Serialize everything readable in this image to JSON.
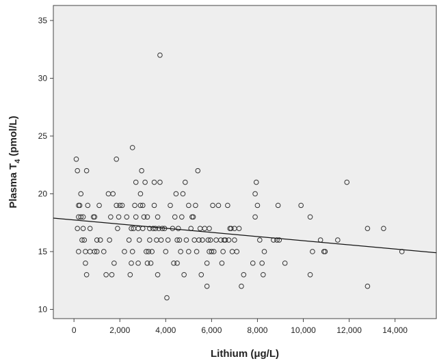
{
  "chart_data": {
    "type": "scatter",
    "title": "",
    "xlabel": "Lithium (μg/L)",
    "ylabel": {
      "main": "Plasma T",
      "sub": "4",
      "tail": " (pmol/L)"
    },
    "xlim": [
      -900,
      15800
    ],
    "ylim": [
      9.2,
      36.3
    ],
    "xticks": [
      0,
      2000,
      4000,
      6000,
      8000,
      10000,
      12000,
      14000
    ],
    "xtick_labels": [
      "0",
      "2,000",
      "4,000",
      "6,000",
      "8,000",
      "10,000",
      "12,000",
      "14,000"
    ],
    "yticks": [
      10,
      15,
      20,
      25,
      30,
      35
    ],
    "ytick_labels": [
      "10",
      "15",
      "20",
      "25",
      "30",
      "35"
    ],
    "grid": false,
    "background": "#eeeeee",
    "marker_color": "#333333",
    "fit_line": {
      "x": [
        -900,
        15800
      ],
      "y": [
        17.9,
        14.9
      ]
    },
    "points": [
      [
        100,
        23
      ],
      [
        150,
        22
      ],
      [
        150,
        17
      ],
      [
        200,
        19
      ],
      [
        250,
        19
      ],
      [
        200,
        18
      ],
      [
        300,
        18
      ],
      [
        200,
        15
      ],
      [
        300,
        20
      ],
      [
        350,
        16
      ],
      [
        400,
        17
      ],
      [
        400,
        18
      ],
      [
        450,
        16
      ],
      [
        500,
        14
      ],
      [
        500,
        15
      ],
      [
        550,
        13
      ],
      [
        550,
        22
      ],
      [
        600,
        19
      ],
      [
        700,
        17
      ],
      [
        700,
        15
      ],
      [
        850,
        18
      ],
      [
        900,
        18
      ],
      [
        900,
        15
      ],
      [
        1000,
        16
      ],
      [
        1000,
        15
      ],
      [
        1100,
        19
      ],
      [
        1150,
        16
      ],
      [
        1300,
        15
      ],
      [
        1400,
        13
      ],
      [
        1500,
        20
      ],
      [
        1550,
        16
      ],
      [
        1600,
        18
      ],
      [
        1650,
        13
      ],
      [
        1700,
        20
      ],
      [
        1750,
        14
      ],
      [
        1850,
        23
      ],
      [
        1850,
        19
      ],
      [
        1900,
        17
      ],
      [
        1950,
        18
      ],
      [
        2000,
        19
      ],
      [
        2100,
        19
      ],
      [
        2200,
        15
      ],
      [
        2300,
        18
      ],
      [
        2400,
        16
      ],
      [
        2450,
        13
      ],
      [
        2500,
        14
      ],
      [
        2500,
        17
      ],
      [
        2550,
        24
      ],
      [
        2550,
        15
      ],
      [
        2600,
        17
      ],
      [
        2650,
        19
      ],
      [
        2700,
        18
      ],
      [
        2700,
        21
      ],
      [
        2800,
        17
      ],
      [
        2800,
        14
      ],
      [
        2850,
        16
      ],
      [
        2900,
        19
      ],
      [
        2900,
        20
      ],
      [
        2950,
        22
      ],
      [
        3000,
        19
      ],
      [
        3000,
        17
      ],
      [
        3050,
        18
      ],
      [
        3100,
        21
      ],
      [
        3150,
        15
      ],
      [
        3200,
        18
      ],
      [
        3200,
        14
      ],
      [
        3250,
        15
      ],
      [
        3300,
        17
      ],
      [
        3300,
        16
      ],
      [
        3350,
        14
      ],
      [
        3400,
        15
      ],
      [
        3450,
        17
      ],
      [
        3500,
        21
      ],
      [
        3500,
        19
      ],
      [
        3550,
        17
      ],
      [
        3600,
        16
      ],
      [
        3650,
        18
      ],
      [
        3650,
        13
      ],
      [
        3700,
        17
      ],
      [
        3750,
        21
      ],
      [
        3750,
        32
      ],
      [
        3800,
        16
      ],
      [
        3850,
        17
      ],
      [
        3950,
        17
      ],
      [
        4000,
        15
      ],
      [
        4050,
        11
      ],
      [
        4100,
        16
      ],
      [
        4200,
        19
      ],
      [
        4300,
        17
      ],
      [
        4350,
        14
      ],
      [
        4400,
        18
      ],
      [
        4450,
        20
      ],
      [
        4500,
        16
      ],
      [
        4500,
        14
      ],
      [
        4550,
        17
      ],
      [
        4600,
        16
      ],
      [
        4650,
        15
      ],
      [
        4700,
        18
      ],
      [
        4750,
        20
      ],
      [
        4800,
        13
      ],
      [
        4850,
        21
      ],
      [
        4900,
        16
      ],
      [
        5000,
        19
      ],
      [
        5000,
        15
      ],
      [
        5100,
        17
      ],
      [
        5150,
        18
      ],
      [
        5200,
        18
      ],
      [
        5250,
        16
      ],
      [
        5300,
        19
      ],
      [
        5350,
        15
      ],
      [
        5400,
        22
      ],
      [
        5450,
        16
      ],
      [
        5500,
        17
      ],
      [
        5550,
        13
      ],
      [
        5600,
        16
      ],
      [
        5700,
        17
      ],
      [
        5800,
        14
      ],
      [
        5800,
        12
      ],
      [
        5850,
        16
      ],
      [
        5900,
        15
      ],
      [
        5900,
        17
      ],
      [
        5950,
        16
      ],
      [
        6000,
        15
      ],
      [
        6050,
        19
      ],
      [
        6100,
        15
      ],
      [
        6200,
        16
      ],
      [
        6300,
        19
      ],
      [
        6400,
        16
      ],
      [
        6450,
        14
      ],
      [
        6500,
        15
      ],
      [
        6550,
        16
      ],
      [
        6600,
        16
      ],
      [
        6700,
        19
      ],
      [
        6750,
        16
      ],
      [
        6800,
        17
      ],
      [
        6850,
        17
      ],
      [
        6900,
        15
      ],
      [
        7000,
        17
      ],
      [
        7000,
        16
      ],
      [
        7100,
        15
      ],
      [
        7200,
        17
      ],
      [
        7300,
        12
      ],
      [
        7400,
        13
      ],
      [
        7800,
        14
      ],
      [
        7900,
        18
      ],
      [
        7950,
        21
      ],
      [
        7900,
        20
      ],
      [
        8000,
        19
      ],
      [
        8100,
        16
      ],
      [
        8200,
        14
      ],
      [
        8250,
        13
      ],
      [
        8300,
        15
      ],
      [
        8700,
        16
      ],
      [
        8850,
        16
      ],
      [
        8900,
        19
      ],
      [
        8950,
        16
      ],
      [
        9200,
        14
      ],
      [
        9900,
        19
      ],
      [
        10300,
        13
      ],
      [
        10400,
        15
      ],
      [
        10300,
        18
      ],
      [
        10750,
        16
      ],
      [
        10900,
        15
      ],
      [
        10950,
        15
      ],
      [
        11500,
        16
      ],
      [
        11900,
        21
      ],
      [
        12800,
        17
      ],
      [
        12800,
        12
      ],
      [
        13500,
        17
      ],
      [
        14300,
        15
      ]
    ]
  }
}
